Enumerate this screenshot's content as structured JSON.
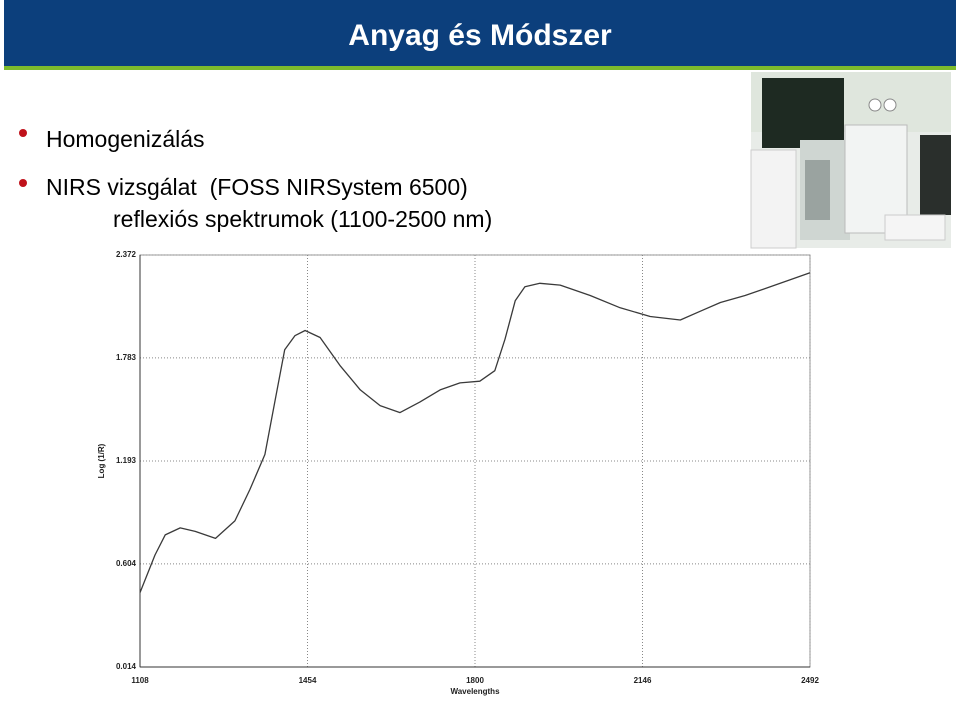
{
  "slide": {
    "title": "Anyag és Módszer",
    "bullets": [
      [
        "Homogenizálás"
      ],
      [
        "NIRS vizsgálat  (FOSS NIRSystem 6500)",
        "reflexiós spektrumok (1100-2500 nm)"
      ]
    ]
  },
  "chart_data": {
    "type": "line",
    "x_label": "Wavelengths",
    "y_label": "Log (1/R)",
    "color": "#3a3a3a",
    "grid": true,
    "x": [
      1108,
      1139,
      1160,
      1191,
      1222,
      1264,
      1304,
      1335,
      1366,
      1387,
      1407,
      1428,
      1449,
      1480,
      1521,
      1563,
      1604,
      1645,
      1686,
      1728,
      1769,
      1810,
      1841,
      1862,
      1883,
      1903,
      1934,
      1976,
      2038,
      2100,
      2162,
      2224,
      2265,
      2307,
      2358,
      2410,
      2451,
      2492
    ],
    "values": [
      0.44,
      0.655,
      0.77,
      0.81,
      0.79,
      0.75,
      0.85,
      1.03,
      1.23,
      1.54,
      1.83,
      1.91,
      1.94,
      1.9,
      1.74,
      1.6,
      1.51,
      1.47,
      1.53,
      1.6,
      1.64,
      1.65,
      1.71,
      1.89,
      2.11,
      2.19,
      2.21,
      2.2,
      2.14,
      2.07,
      2.02,
      2.0,
      2.05,
      2.1,
      2.14,
      2.19,
      2.23,
      2.27
    ],
    "xlim": [
      1108,
      2492
    ],
    "xticks": [
      1108,
      1454,
      1800,
      2146,
      2492
    ],
    "ylim": [
      0.014,
      2.372
    ],
    "yticks": [
      0.014,
      0.604,
      1.193,
      1.783,
      2.372
    ]
  }
}
